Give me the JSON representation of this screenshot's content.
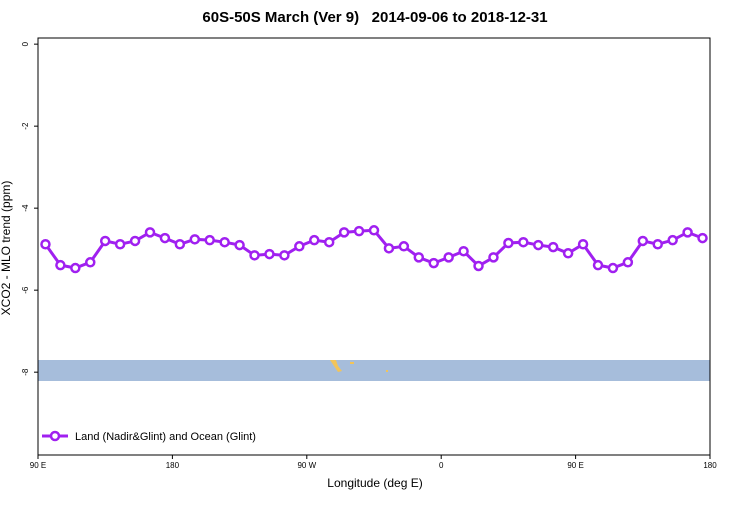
{
  "chart_data": {
    "type": "line",
    "title": "60S-50S March (Ver 9)   2014-09-06 to 2018-12-31",
    "x_label": "Longitude (deg E)",
    "y_label": "XCO2 - MLO trend (ppm)",
    "x": [
      95,
      105,
      115,
      125,
      135,
      145,
      155,
      165,
      175,
      185,
      195,
      205,
      215,
      225,
      235,
      245,
      255,
      265,
      275,
      285,
      295,
      305,
      315,
      325,
      335,
      345,
      355,
      365,
      375,
      385,
      395,
      405,
      415,
      425,
      435,
      445,
      455,
      465,
      475,
      485,
      495,
      505,
      515,
      525,
      535
    ],
    "series": [
      {
        "name": "Land (Nadir&Glint) and Ocean (Glint)",
        "color": "#a020f0",
        "values": [
          -4.88,
          -5.39,
          -5.46,
          -5.32,
          -4.8,
          -4.88,
          -4.8,
          -4.59,
          -4.73,
          -4.88,
          -4.76,
          -4.78,
          -4.83,
          -4.9,
          -5.15,
          -5.12,
          -5.15,
          -4.93,
          -4.78,
          -4.83,
          -4.59,
          -4.56,
          -4.54,
          -4.98,
          -4.93,
          -5.2,
          -5.34,
          -5.2,
          -5.05,
          -5.41,
          -5.2,
          -4.85,
          -4.83,
          -4.9,
          -4.95,
          -5.1,
          -4.88,
          -5.39,
          -5.46,
          -5.32,
          -4.8,
          -4.88,
          -4.78,
          -4.59,
          -4.73
        ]
      }
    ],
    "xlim": [
      90,
      540
    ],
    "xticks": [
      {
        "value": 90,
        "label": "90 E"
      },
      180,
      {
        "value": 270,
        "label": "90 W"
      },
      {
        "value": 360,
        "label": "0"
      },
      {
        "value": 450,
        "label": "90 E"
      },
      {
        "value": 540,
        "label": "180"
      }
    ],
    "ylim": [
      -10.02,
      0.15
    ],
    "yticks": [
      0,
      -2,
      -4,
      -6,
      -8
    ],
    "legend": "bottom-left"
  }
}
